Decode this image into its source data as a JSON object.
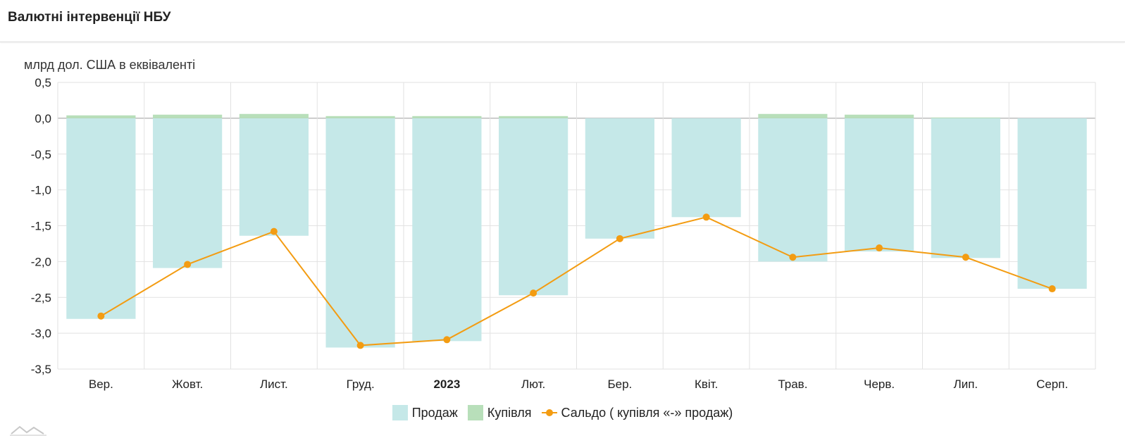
{
  "header": {
    "title": "Валютні інтервенції НБУ"
  },
  "chart_data": {
    "type": "bar",
    "ylabel": "млрд дол. США в еквіваленті",
    "ylim": [
      -3.5,
      0.5
    ],
    "yticks": [
      "0,5",
      "0,0",
      "-0,5",
      "-1,0",
      "-1,5",
      "-2,0",
      "-2,5",
      "-3,0",
      "-3,5"
    ],
    "ytick_values": [
      0.5,
      0,
      -0.5,
      -1,
      -1.5,
      -2,
      -2.5,
      -3,
      -3.5
    ],
    "categories": [
      "Вер.",
      "Жовт.",
      "Лист.",
      "Груд.",
      "2023",
      "Лют.",
      "Бер.",
      "Квіт.",
      "Трав.",
      "Черв.",
      "Лип.",
      "Серп."
    ],
    "bold_category": "2023",
    "grid": true,
    "legend_position": "bottom-center",
    "series": [
      {
        "name": "Продаж",
        "type": "bar",
        "color": "#c5e8e8",
        "values": [
          -2.8,
          -2.09,
          -1.64,
          -3.2,
          -3.11,
          -2.47,
          -1.68,
          -1.38,
          -2.0,
          -1.86,
          -1.95,
          -2.38
        ]
      },
      {
        "name": "Купівля",
        "type": "bar",
        "color": "#b8dfba",
        "values": [
          0.04,
          0.05,
          0.06,
          0.03,
          0.03,
          0.03,
          0.0,
          0.0,
          0.06,
          0.05,
          0.01,
          0.0
        ]
      },
      {
        "name": "Сальдо ( купівля «-» продаж)",
        "type": "line",
        "color": "#f39c12",
        "values": [
          -2.76,
          -2.04,
          -1.58,
          -3.17,
          -3.09,
          -2.44,
          -1.68,
          -1.38,
          -1.94,
          -1.81,
          -1.94,
          -2.38
        ]
      }
    ]
  },
  "legend": {
    "sales": "Продаж",
    "purchase": "Купівля",
    "balance": "Сальдо ( купівля «-» продаж)"
  }
}
